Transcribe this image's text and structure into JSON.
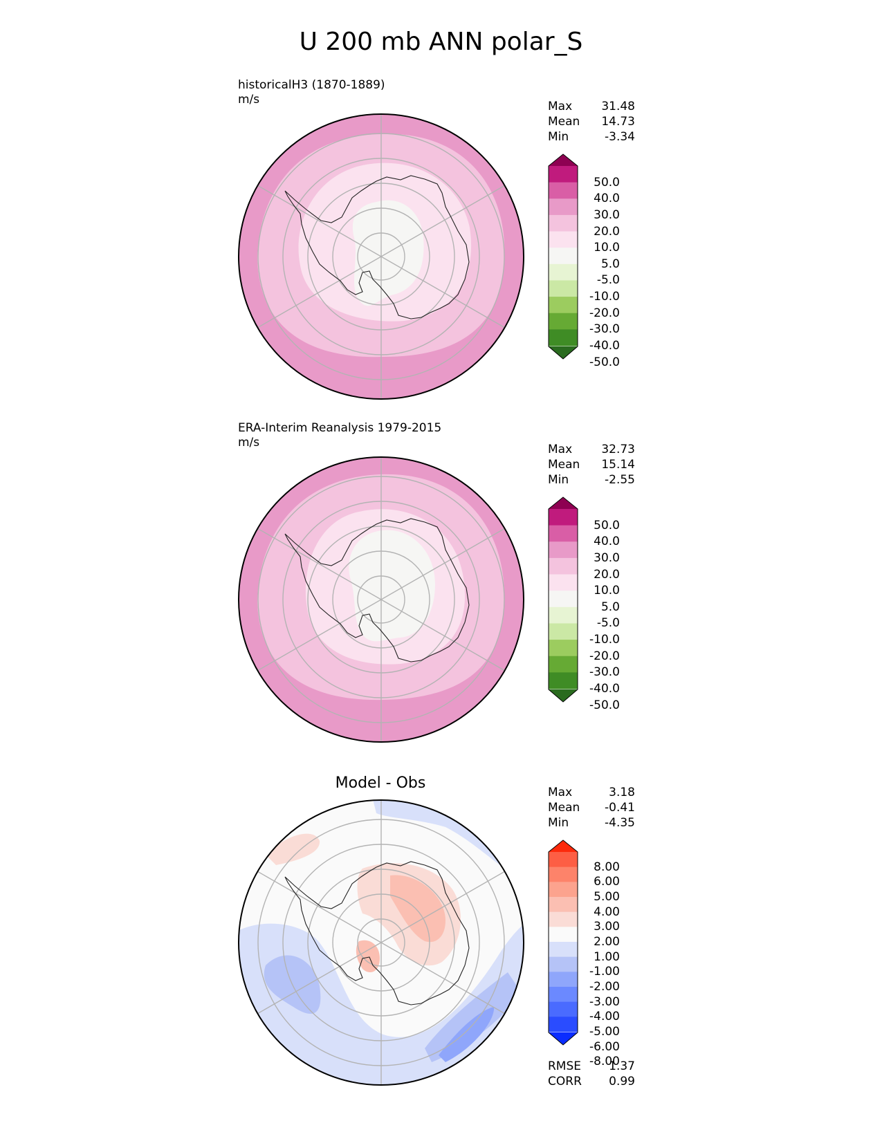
{
  "figure": {
    "title": "U 200 mb ANN polar_S"
  },
  "panels": [
    {
      "id": "test",
      "title": "historicalH3 (1870-1889)",
      "units": "m/s",
      "stats": [
        {
          "label": "Max",
          "value": "31.48"
        },
        {
          "label": "Mean",
          "value": "14.73"
        },
        {
          "label": "Min",
          "value": "-3.34"
        }
      ],
      "colorbar": {
        "colors": [
          "#2a6b1f",
          "#3f8c25",
          "#66aa34",
          "#9ccc5f",
          "#cbe8a5",
          "#e7f4d3",
          "#f6f6f4",
          "#fbe2ef",
          "#f4c3de",
          "#e89ac8",
          "#d95ea6",
          "#c01b7d",
          "#8e0152"
        ],
        "ticks": [
          "50.0",
          "40.0",
          "30.0",
          "20.0",
          "10.0",
          "5.0",
          "-5.0",
          "-10.0",
          "-20.0",
          "-30.0",
          "-40.0",
          "-50.0"
        ]
      },
      "map": {
        "outer_color": "#e89ac8",
        "mid_color": "#f4c3de",
        "inner_color": "#fbe2ef",
        "core_color": "#f6f6f4"
      }
    },
    {
      "id": "reference",
      "title": "ERA-Interim Reanalysis 1979-2015",
      "units": "m/s",
      "stats": [
        {
          "label": "Max",
          "value": "32.73"
        },
        {
          "label": "Mean",
          "value": "15.14"
        },
        {
          "label": "Min",
          "value": "-2.55"
        }
      ],
      "colorbar": {
        "colors": [
          "#2a6b1f",
          "#3f8c25",
          "#66aa34",
          "#9ccc5f",
          "#cbe8a5",
          "#e7f4d3",
          "#f6f6f4",
          "#fbe2ef",
          "#f4c3de",
          "#e89ac8",
          "#d95ea6",
          "#c01b7d",
          "#8e0152"
        ],
        "ticks": [
          "50.0",
          "40.0",
          "30.0",
          "20.0",
          "10.0",
          "5.0",
          "-5.0",
          "-10.0",
          "-20.0",
          "-30.0",
          "-40.0",
          "-50.0"
        ]
      },
      "map": {
        "outer_color": "#e89ac8",
        "mid_color": "#f4c3de",
        "inner_color": "#fbe2ef",
        "core_color": "#f6f6f4"
      }
    },
    {
      "id": "difference",
      "title": "Model - Obs",
      "stats": [
        {
          "label": "Max",
          "value": "3.18"
        },
        {
          "label": "Mean",
          "value": "-0.41"
        },
        {
          "label": "Min",
          "value": "-4.35"
        }
      ],
      "extra_stats": [
        {
          "label": "RMSE",
          "value": "1.37"
        },
        {
          "label": "CORR",
          "value": "0.99"
        }
      ],
      "colorbar": {
        "colors": [
          "#0a2cff",
          "#2a4cff",
          "#4a6bff",
          "#6b89ff",
          "#8fa6fb",
          "#b5c3f7",
          "#d8e0fa",
          "#fafafa",
          "#fadcd6",
          "#fbbfb2",
          "#fca38e",
          "#fd836a",
          "#fd5e44",
          "#fc2a0c"
        ],
        "ticks": [
          "8.00",
          "6.00",
          "5.00",
          "4.00",
          "3.00",
          "2.00",
          "1.00",
          "-1.00",
          "-2.00",
          "-3.00",
          "-4.00",
          "-5.00",
          "-6.00",
          "-8.00"
        ]
      },
      "map": {
        "background": "#fafafa",
        "pos_light": "#fadcd6",
        "pos_mid": "#fbbfb2",
        "neg_light": "#d8e0fa",
        "neg_mid": "#b5c3f7",
        "neg_strong": "#8fa6fb"
      }
    }
  ]
}
